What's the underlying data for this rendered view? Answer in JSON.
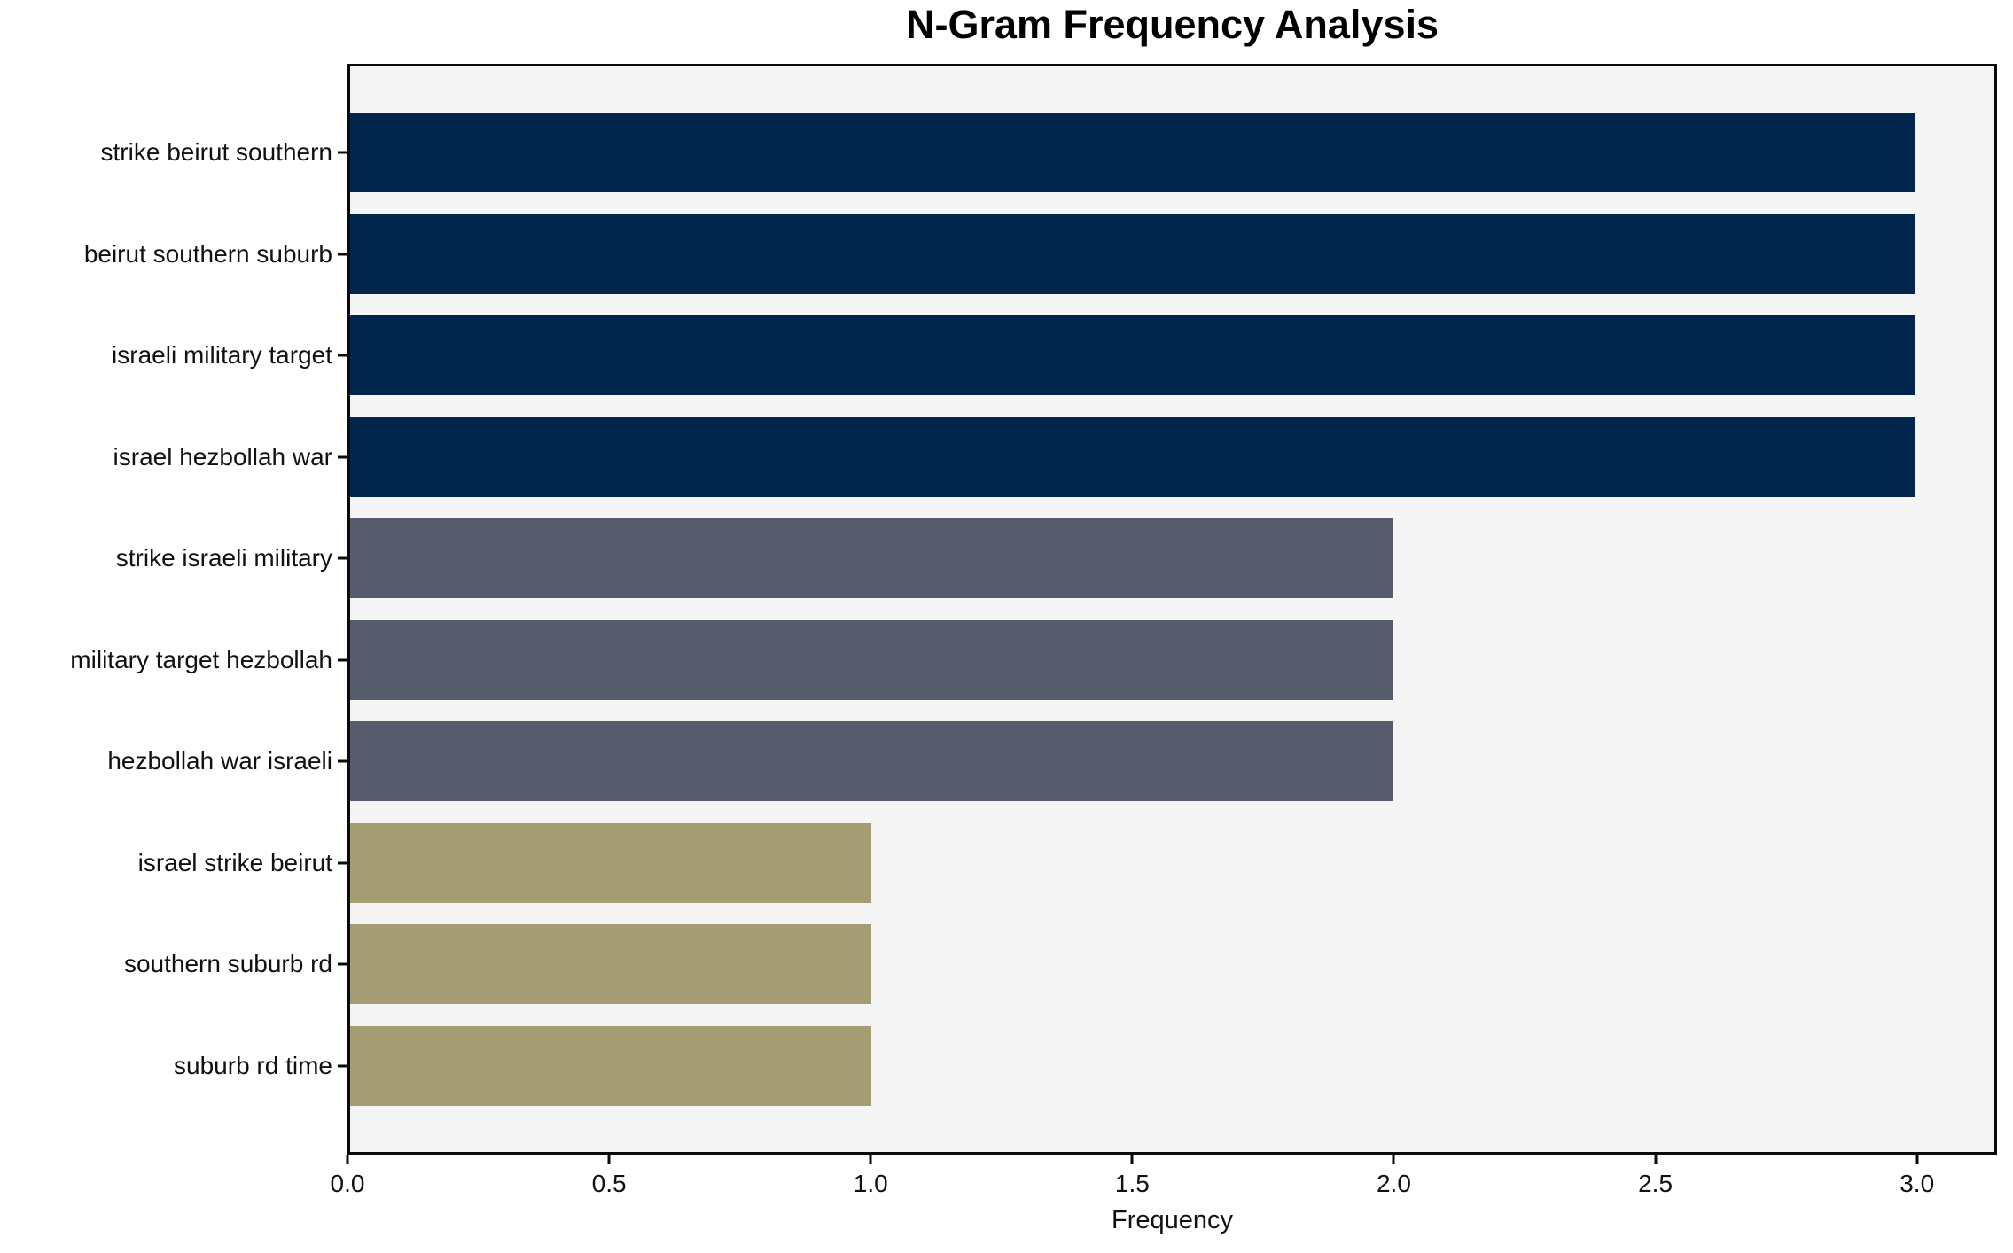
{
  "chart_data": {
    "type": "bar",
    "orientation": "horizontal",
    "title": "N-Gram Frequency Analysis",
    "xlabel": "Frequency",
    "ylabel": "",
    "categories": [
      "strike beirut southern",
      "beirut southern suburb",
      "israeli military target",
      "israel hezbollah war",
      "strike israeli military",
      "military target hezbollah",
      "hezbollah war israeli",
      "israel strike beirut",
      "southern suburb rd",
      "suburb rd time"
    ],
    "values": [
      3,
      3,
      3,
      3,
      2,
      2,
      2,
      1,
      1,
      1
    ],
    "bar_colors": [
      "#02254d",
      "#02254d",
      "#02254d",
      "#02254d",
      "#565c6b",
      "#565c6b",
      "#565c6b",
      "#a49c72",
      "#a49c72",
      "#a49c72"
    ],
    "xticks": [
      {
        "value": 0.0,
        "label": "0.0"
      },
      {
        "value": 0.5,
        "label": "0.5"
      },
      {
        "value": 1.0,
        "label": "1.0"
      },
      {
        "value": 1.5,
        "label": "1.5"
      },
      {
        "value": 2.0,
        "label": "2.0"
      },
      {
        "value": 2.5,
        "label": "2.5"
      },
      {
        "value": 3.0,
        "label": "3.0"
      }
    ],
    "xlim": [
      0,
      3.153
    ],
    "grid": false,
    "legend": null,
    "colors": {
      "plot_background": "#f5f5f6",
      "figure_background": "#ffffff",
      "spine": "#0a0a0a",
      "text": "#111111",
      "title_text": "#000000"
    }
  }
}
